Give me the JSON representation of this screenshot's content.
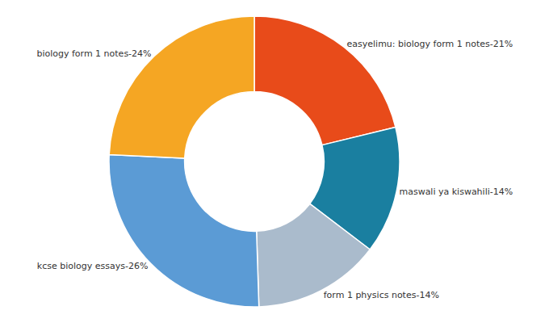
{
  "chart_data": {
    "type": "pie",
    "categories": [
      "easyelimu: biology form 1 notes",
      "maswali ya kiswahili",
      "form 1 physics notes",
      "kcse biology essays",
      "biology form 1 notes"
    ],
    "values": [
      21,
      14,
      14,
      26,
      24
    ],
    "value_labels": [
      "easyelimu: biology form 1 notes-21%",
      "maswali ya kiswahili-14%",
      "form 1 physics notes-14%",
      "kcse biology essays-26%",
      "biology form 1 notes-24%"
    ],
    "colors": [
      "#E84B1A",
      "#1A7FA0",
      "#AABBCC",
      "#5B9BD5",
      "#F5A623"
    ],
    "data_labels": true
  }
}
